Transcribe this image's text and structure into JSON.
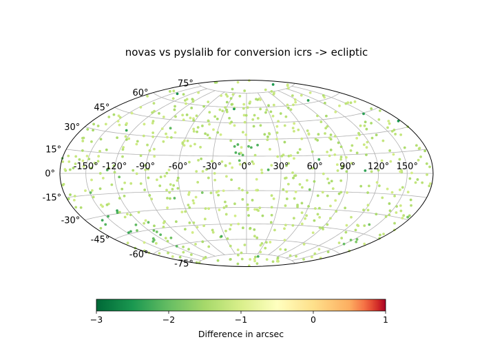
{
  "chart_data": {
    "type": "scatter",
    "projection": "hammer",
    "title": "novas vs pyslalib for conversion icrs -> ecliptic",
    "lon_ticks": [
      "-150°",
      "-120°",
      "-90°",
      "-60°",
      "-30°",
      "0°",
      "30°",
      "60°",
      "90°",
      "120°",
      "150°"
    ],
    "lat_ticks": [
      "-75°",
      "-60°",
      "-45°",
      "-30°",
      "-15°",
      "0°",
      "15°",
      "30°",
      "45°",
      "60°",
      "75°"
    ],
    "grid": true,
    "colorbar": {
      "cmap": "RdYlGn_r",
      "vmin": -3,
      "vmax": 1,
      "ticks": [
        "−3",
        "−2",
        "−1",
        "0",
        "1"
      ],
      "label": "Difference in arcsec"
    },
    "point_count_approx": 700,
    "value_range": [
      -2.6,
      -1.0
    ],
    "clusters": [
      {
        "lon": 0,
        "lat": 22,
        "value": -2.1
      },
      {
        "lon": -150,
        "lat": -38,
        "value": -2.2
      },
      {
        "lon": 150,
        "lat": -45,
        "value": -1.9
      },
      {
        "lon": -120,
        "lat": -50,
        "value": -2.0
      }
    ]
  }
}
